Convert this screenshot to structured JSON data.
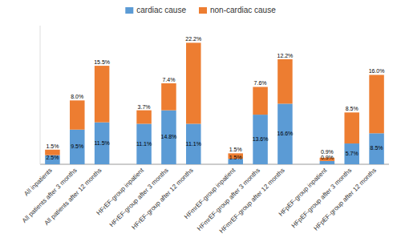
{
  "chart_data": {
    "type": "bar",
    "stacked": true,
    "categories": [
      "All inpatients",
      "All patients after 3 months",
      "All patients after 12 months",
      "HFrEF-group inpatient",
      "HFrEF-group after 3 months",
      "HFrEF-group after 12 months",
      "HFmrEF-group inpatient",
      "HFmrEF-group after 3 months",
      "HFmrEF-group after 12 months",
      "HFpEF-group inpatient",
      "HFpEF-group after 3 months",
      "HFpEF-group after 12 months"
    ],
    "series": [
      {
        "name": "cardiac cause",
        "color": "#5B9BD5",
        "values": [
          2.5,
          9.5,
          11.5,
          11.1,
          14.8,
          11.1,
          1.5,
          13.6,
          16.6,
          0.9,
          5.7,
          8.5
        ],
        "value_labels": [
          "2.5%",
          "9.5%",
          "11.5%",
          "11.1%",
          "14.8%",
          "11.1%",
          "1.5%",
          "13.6%",
          "16.6%",
          "0.9%",
          "5.7%",
          "8.5%"
        ]
      },
      {
        "name": "non-cardiac cause",
        "color": "#ED7D31",
        "values": [
          1.5,
          8.0,
          15.5,
          3.7,
          7.4,
          22.2,
          1.5,
          7.6,
          12.2,
          0.9,
          8.5,
          16.0
        ],
        "value_labels": [
          "1.5%",
          "8.0%",
          "15.5%",
          "3.7%",
          "7.4%",
          "22.2%",
          "1.5%",
          "7.6%",
          "12.2%",
          "0.9%",
          "8.5%",
          "16.0%"
        ]
      }
    ],
    "ylim": [
      0,
      38
    ],
    "data_labels": true,
    "tick_labels": "x",
    "legend": "top",
    "grid": false
  }
}
